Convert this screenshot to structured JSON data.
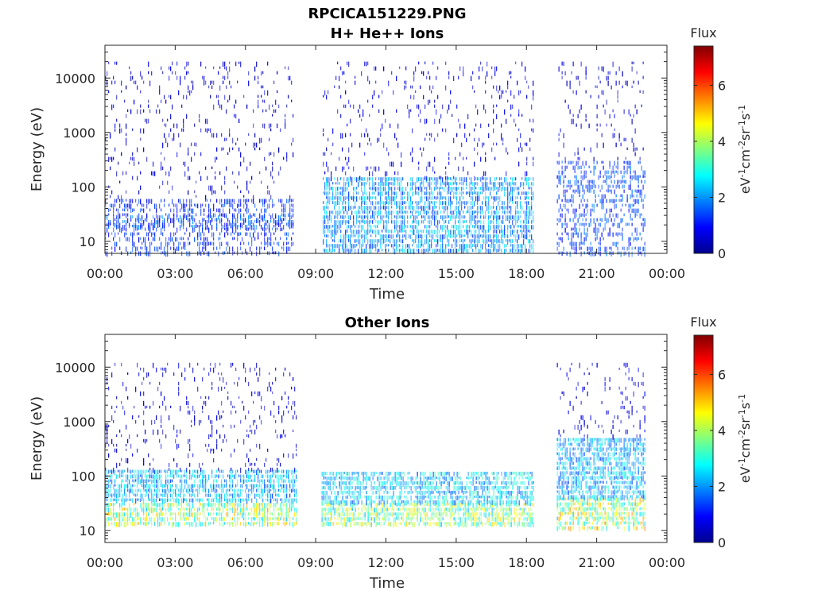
{
  "figure": {
    "title": "RPCICA151229.PNG"
  },
  "chart_data": [
    {
      "type": "heatmap",
      "title": "H+ He++ Ions",
      "xlabel": "Time",
      "ylabel": "Energy (eV)",
      "x_tick_labels": [
        "00:00",
        "03:00",
        "06:00",
        "09:00",
        "12:00",
        "15:00",
        "18:00",
        "21:00",
        "00:00"
      ],
      "x_range_hours": [
        0,
        24
      ],
      "y_scale": "log",
      "y_range": [
        6,
        40000
      ],
      "y_ticks": [
        10,
        100,
        1000,
        10000
      ],
      "y_tick_labels": [
        "10",
        "100",
        "1000",
        "10000"
      ],
      "grid": false,
      "data_intervals_hours": [
        [
          0,
          8.05
        ],
        [
          9.3,
          18.3
        ],
        [
          19.3,
          23.1
        ]
      ],
      "colorbar": {
        "label": "Flux",
        "unit": "eV-1cm-2sr-1s-1",
        "range": [
          0,
          7.4
        ],
        "ticks": [
          0,
          2,
          4,
          6
        ],
        "tick_labels": [
          "0",
          "2",
          "4",
          "6"
        ],
        "colormap": "jet"
      },
      "bands": [
        {
          "interval": [
            0,
            8.05
          ],
          "energy": [
            18,
            30
          ],
          "level": 1.6
        },
        {
          "interval": [
            0,
            8.05
          ],
          "energy": [
            6,
            60
          ],
          "level": 1.2
        },
        {
          "interval": [
            0,
            8.05
          ],
          "energy": [
            60,
            20000
          ],
          "level": 0.6
        },
        {
          "interval": [
            9.3,
            18.3
          ],
          "energy": [
            6,
            150
          ],
          "level": 2.0
        },
        {
          "interval": [
            9.3,
            18.3
          ],
          "energy": [
            150,
            20000
          ],
          "level": 0.7
        },
        {
          "interval": [
            19.3,
            23.1
          ],
          "energy": [
            6,
            300
          ],
          "level": 1.4
        },
        {
          "interval": [
            19.3,
            23.1
          ],
          "energy": [
            300,
            20000
          ],
          "level": 0.6
        }
      ]
    },
    {
      "type": "heatmap",
      "title": "Other Ions",
      "xlabel": "Time",
      "ylabel": "Energy (eV)",
      "x_tick_labels": [
        "00:00",
        "03:00",
        "06:00",
        "09:00",
        "12:00",
        "15:00",
        "18:00",
        "21:00",
        "00:00"
      ],
      "x_range_hours": [
        0,
        24
      ],
      "y_scale": "log",
      "y_range": [
        6,
        40000
      ],
      "y_ticks": [
        10,
        100,
        1000,
        10000
      ],
      "y_tick_labels": [
        "10",
        "100",
        "1000",
        "10000"
      ],
      "grid": false,
      "data_intervals_hours": [
        [
          0,
          8.2
        ],
        [
          9.25,
          18.3
        ],
        [
          19.3,
          23.1
        ]
      ],
      "colorbar": {
        "label": "Flux",
        "unit": "eV-1cm-2sr-1s-1",
        "range": [
          0,
          7.4
        ],
        "ticks": [
          0,
          2,
          4,
          6
        ],
        "tick_labels": [
          "0",
          "2",
          "4",
          "6"
        ],
        "colormap": "jet"
      },
      "bands": [
        {
          "interval": [
            0,
            8.2
          ],
          "energy": [
            12,
            32
          ],
          "level": 3.8
        },
        {
          "interval": [
            0,
            8.2
          ],
          "energy": [
            32,
            130
          ],
          "level": 2.2
        },
        {
          "interval": [
            0,
            8.2
          ],
          "energy": [
            130,
            12000
          ],
          "level": 0.6
        },
        {
          "interval": [
            9.25,
            18.3
          ],
          "energy": [
            12,
            32
          ],
          "level": 3.6
        },
        {
          "interval": [
            9.25,
            18.3
          ],
          "energy": [
            32,
            120
          ],
          "level": 2.4
        },
        {
          "interval": [
            19.3,
            23.1
          ],
          "energy": [
            10,
            40
          ],
          "level": 4.0
        },
        {
          "interval": [
            19.3,
            23.1
          ],
          "energy": [
            40,
            500
          ],
          "level": 2.2
        },
        {
          "interval": [
            19.3,
            23.1
          ],
          "energy": [
            500,
            12000
          ],
          "level": 0.7
        }
      ]
    }
  ]
}
